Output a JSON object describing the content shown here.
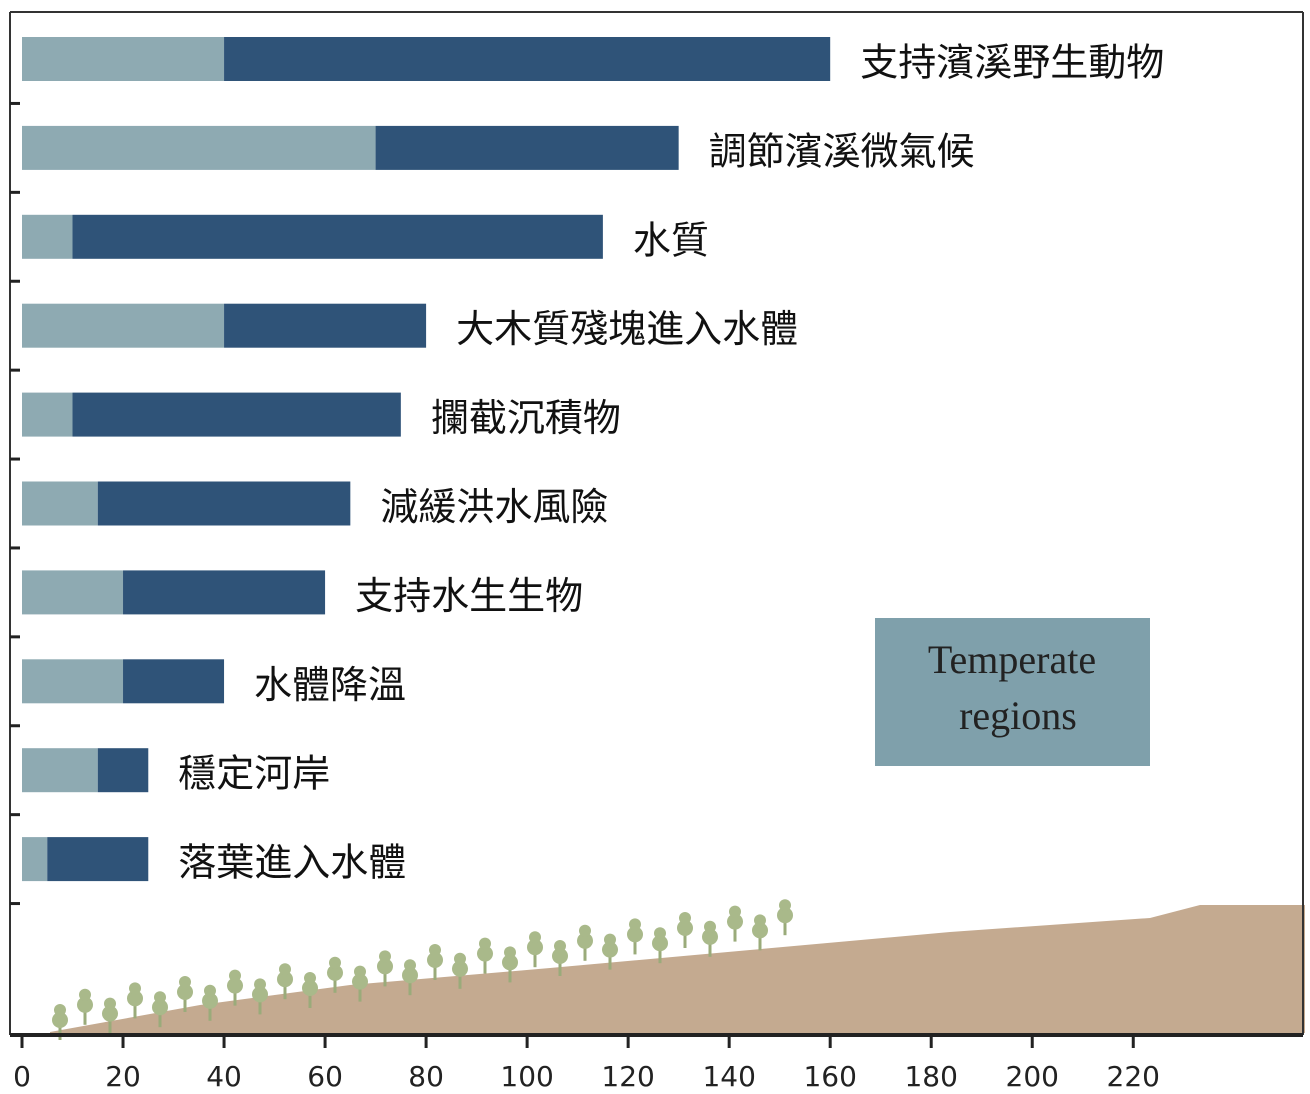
{
  "chart_data": {
    "type": "stacked-bar-horizontal",
    "categories": [
      "支持濱溪野生動物",
      "調節濱溪微氣候",
      "水質",
      "大木質殘塊進入水體",
      "攔截沉積物",
      "減緩洪水風險",
      "支持水生生物",
      "水體降溫",
      "穩定河岸",
      "落葉進入水體"
    ],
    "series": [
      {
        "color": "#8eaab2",
        "values": [
          40,
          70,
          10,
          40,
          10,
          15,
          20,
          20,
          15,
          5
        ]
      },
      {
        "color": "#2f5378",
        "values": [
          120,
          60,
          105,
          40,
          65,
          50,
          40,
          20,
          10,
          20
        ]
      }
    ],
    "xlim": [
      0,
      254
    ],
    "xticks": [
      0,
      20,
      40,
      60,
      80,
      100,
      120,
      140,
      160,
      180,
      200,
      220
    ],
    "annotation": "Temperate regions"
  }
}
